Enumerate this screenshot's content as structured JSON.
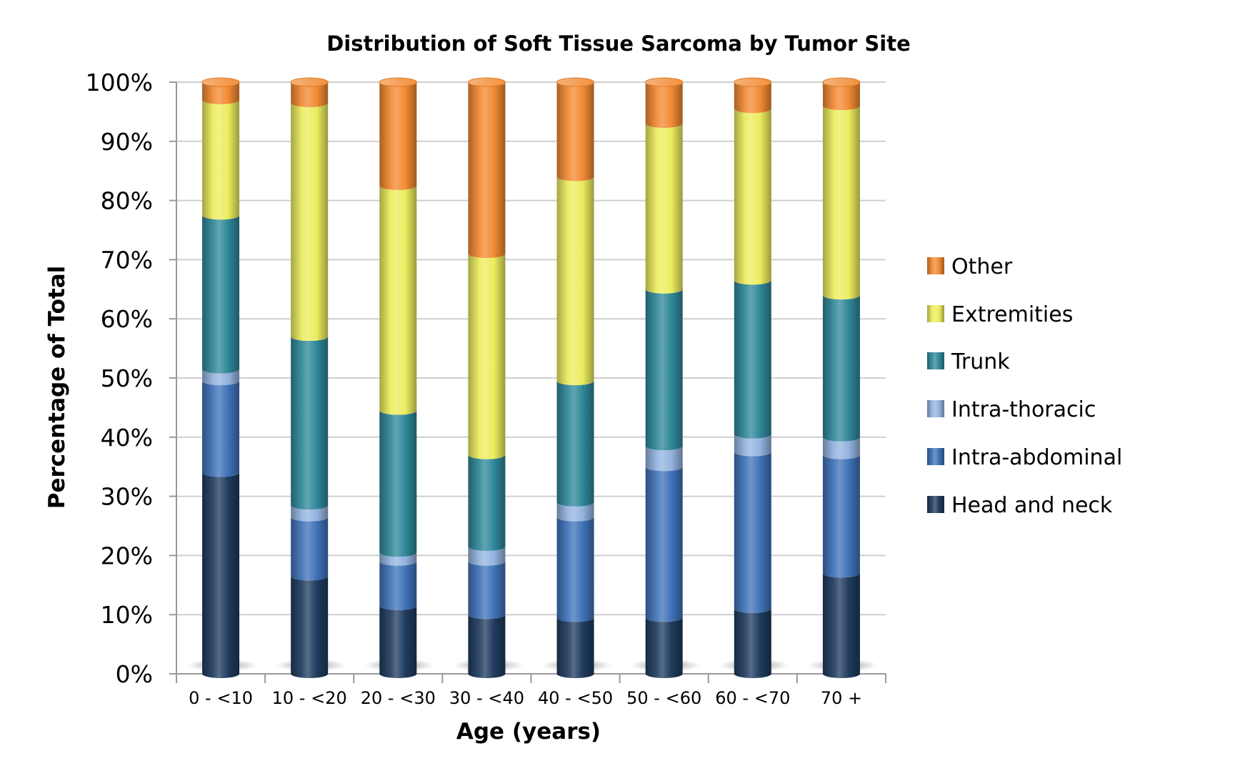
{
  "chart_data": {
    "type": "bar",
    "stacked": true,
    "style": "3d-cylinder",
    "title": "Distribution of Soft Tissue Sarcoma by Tumor Site",
    "xlabel": "Age (years)",
    "ylabel": "Percentage of Total",
    "ylim": [
      0,
      100
    ],
    "yticks": [
      "0%",
      "10%",
      "20%",
      "30%",
      "40%",
      "50%",
      "60%",
      "70%",
      "80%",
      "90%",
      "100%"
    ],
    "grid": true,
    "legend_position": "right",
    "categories": [
      "0 - <10",
      "10 - <20",
      "20 - <30",
      "30 - <40",
      "40 - <50",
      "50 - <60",
      "60 - <70",
      "70 +"
    ],
    "series": [
      {
        "name": "Head and neck",
        "color": "#1f3b5e",
        "values": [
          34,
          16.5,
          11.5,
          10,
          9.5,
          9.5,
          11,
          17
        ]
      },
      {
        "name": "Intra-abdominal",
        "color": "#3f72b8",
        "values": [
          15.5,
          10,
          7.5,
          9,
          17,
          25.5,
          26.5,
          20
        ]
      },
      {
        "name": "Intra-thoracic",
        "color": "#93b3df",
        "values": [
          2,
          2,
          1.5,
          2.5,
          2.5,
          3.5,
          3,
          3
        ]
      },
      {
        "name": "Trunk",
        "color": "#2f8799",
        "values": [
          26,
          28.5,
          24,
          15.5,
          20.5,
          26.5,
          26,
          24
        ]
      },
      {
        "name": "Extremities",
        "color": "#ecec5e",
        "values": [
          19.5,
          39.5,
          38,
          34,
          34.5,
          28,
          29,
          32
        ]
      },
      {
        "name": "Other",
        "color": "#f28a33",
        "values": [
          3,
          3.5,
          17.5,
          29,
          16,
          7,
          4.5,
          4
        ]
      }
    ]
  }
}
